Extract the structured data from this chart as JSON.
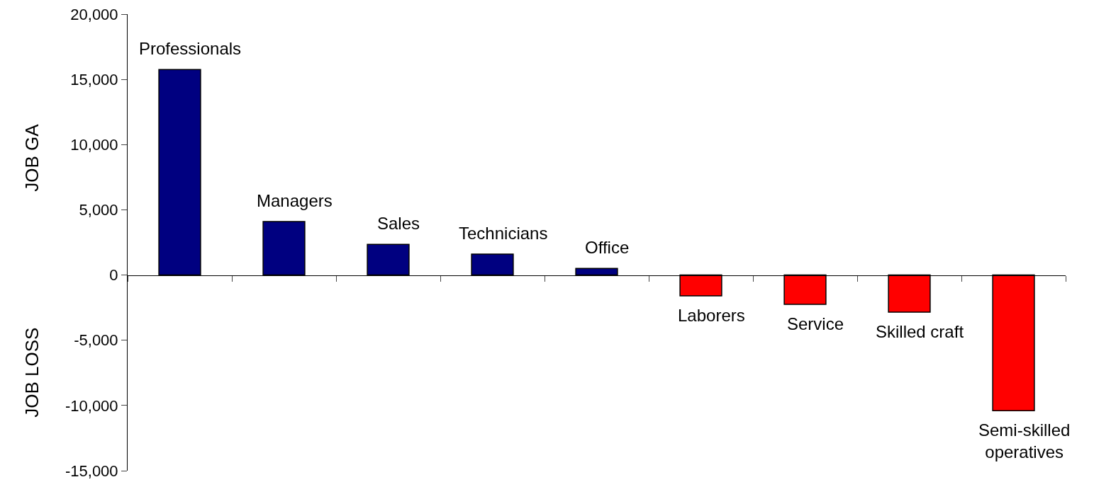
{
  "chart_data": {
    "type": "bar",
    "ylabel": "JOB GA",
    "annotations": [
      "JOB LOSS"
    ],
    "categories": [
      "Professionals",
      "Managers",
      "Sales",
      "Technicians",
      "Office",
      "Laborers",
      "Service",
      "Skilled craft",
      "Semi-skilled operatives"
    ],
    "values": [
      15750,
      4100,
      2350,
      1600,
      500,
      -1600,
      -2250,
      -2850,
      -10400
    ],
    "colors": [
      "#000080",
      "#000080",
      "#000080",
      "#000080",
      "#000080",
      "#ff0000",
      "#ff0000",
      "#ff0000",
      "#ff0000"
    ],
    "ylim": [
      -15000,
      20000
    ],
    "yticks": [
      {
        "value": -15000,
        "label": "-15,000"
      },
      {
        "value": -10000,
        "label": "-10,000"
      },
      {
        "value": -5000,
        "label": "-5,000"
      },
      0,
      {
        "value": 5000,
        "label": "5,000"
      },
      {
        "value": 10000,
        "label": "10,000"
      },
      {
        "value": 15000,
        "label": "15,000"
      },
      {
        "value": 20000,
        "label": "20,000"
      }
    ],
    "tick_labels": "y"
  }
}
